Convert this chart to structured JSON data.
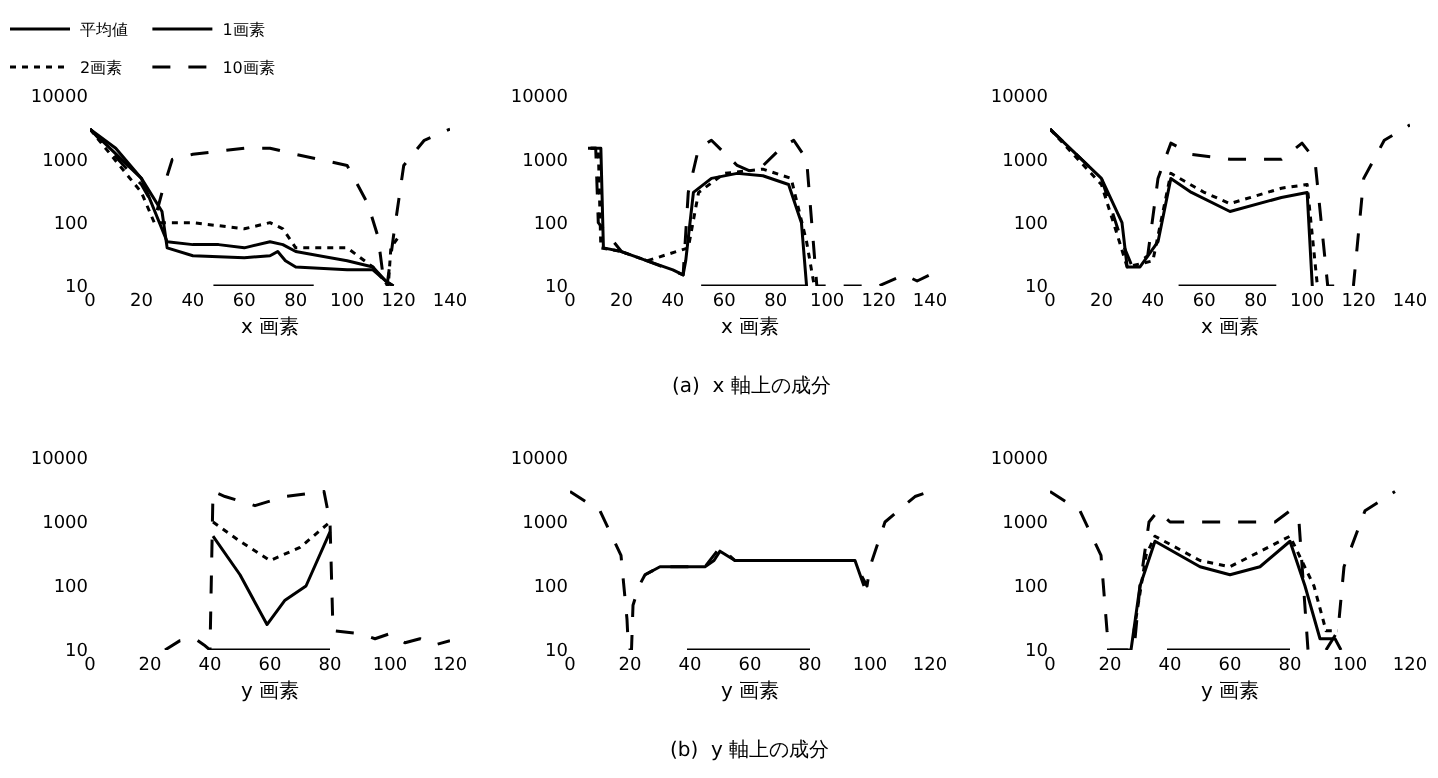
{
  "chart_data": [
    {
      "type": "line",
      "xlabel": "x 画素",
      "log": "y",
      "xlim": [
        0,
        140
      ],
      "xticks": [
        0,
        20,
        40,
        60,
        80,
        100,
        120,
        140
      ],
      "ylim": [
        10,
        10000
      ],
      "yticks": [
        10,
        100,
        1000,
        10000
      ],
      "legend": "top left",
      "grid": false,
      "series": [
        {
          "name": "平均値",
          "color": "#000000",
          "line_style": "solid",
          "x": [
            0,
            10,
            20,
            28,
            30,
            40,
            60,
            70,
            73,
            76,
            80,
            100,
            110,
            115,
            118
          ],
          "values": [
            3000,
            1500,
            500,
            150,
            40,
            30,
            28,
            30,
            35,
            25,
            20,
            18,
            18,
            12,
            10
          ]
        },
        {
          "name": "1画素",
          "color": "#000000",
          "line_style": "solid",
          "x": [
            0,
            20,
            30,
            40,
            50,
            60,
            70,
            75,
            80,
            100,
            110,
            115,
            118
          ],
          "values": [
            3000,
            500,
            50,
            45,
            45,
            40,
            50,
            45,
            35,
            25,
            20,
            12,
            10
          ]
        },
        {
          "name": "2画素",
          "color": "#000000",
          "line_style": "dotted",
          "x": [
            0,
            20,
            25,
            28,
            40,
            60,
            70,
            75,
            80,
            100,
            110,
            116,
            117,
            120
          ],
          "values": [
            3000,
            300,
            100,
            100,
            100,
            80,
            100,
            80,
            40,
            40,
            20,
            10,
            40,
            60
          ]
        },
        {
          "name": "10画素",
          "color": "#000000",
          "line_style": "dashed",
          "x": [
            0,
            20,
            26,
            28,
            32,
            40,
            60,
            70,
            80,
            100,
            108,
            112,
            114.5,
            115.5,
            118,
            122,
            130,
            140
          ],
          "values": [
            3000,
            400,
            150,
            300,
            1000,
            1200,
            1500,
            1500,
            1200,
            800,
            200,
            60,
            10,
            10,
            60,
            800,
            2000,
            3000
          ]
        },
        {
          "color": "#000000",
          "line_style": "solid",
          "x": [
            48,
            87
          ],
          "values": [
            10,
            10
          ]
        }
      ]
    },
    {
      "type": "line",
      "xlabel": "x 画素",
      "log": "y",
      "xlim": [
        0,
        140
      ],
      "xticks": [
        0,
        20,
        40,
        60,
        80,
        100,
        120,
        140
      ],
      "ylim": [
        10,
        10000
      ],
      "yticks": [
        10,
        100,
        1000,
        10000
      ],
      "legend": false,
      "grid": false,
      "annotations": [
        "(a)  x 軸上の成分"
      ],
      "series": [
        {
          "color": "#000000",
          "line_style": "solid",
          "x": [
            8,
            12,
            13,
            20,
            30,
            40,
            44,
            45,
            48,
            55,
            65,
            75,
            85,
            90,
            92
          ],
          "values": [
            1500,
            1500,
            40,
            35,
            25,
            18,
            15,
            25,
            300,
            500,
            600,
            550,
            400,
            100,
            10
          ]
        },
        {
          "color": "#000000",
          "line_style": "dotted",
          "x": [
            8,
            11,
            12,
            20,
            30,
            46,
            50,
            60,
            75,
            86,
            92,
            95
          ],
          "values": [
            1500,
            1500,
            40,
            35,
            25,
            40,
            300,
            600,
            700,
            500,
            50,
            10
          ]
        },
        {
          "color": "#000000",
          "line_style": "dashed",
          "x": [
            7,
            10,
            11,
            20,
            30,
            44,
            46,
            50,
            55,
            65,
            72,
            82,
            87,
            92,
            96,
            100,
            120,
            130,
            135,
            140
          ],
          "values": [
            1500,
            1500,
            100,
            35,
            25,
            15,
            300,
            1500,
            2000,
            800,
            600,
            1500,
            2000,
            1000,
            10,
            10,
            10,
            15,
            12,
            15
          ]
        },
        {
          "color": "#000000",
          "line_style": "solid",
          "x": [
            51,
            92
          ],
          "values": [
            10,
            10
          ]
        }
      ]
    },
    {
      "type": "line",
      "xlabel": "x 画素",
      "log": "y",
      "xlim": [
        0,
        140
      ],
      "xticks": [
        0,
        20,
        40,
        60,
        80,
        100,
        120,
        140
      ],
      "ylim": [
        10,
        10000
      ],
      "yticks": [
        10,
        100,
        1000,
        10000
      ],
      "legend": false,
      "grid": false,
      "series": [
        {
          "color": "#000000",
          "line_style": "solid",
          "x": [
            0,
            20,
            28,
            30,
            35,
            42,
            47,
            55,
            70,
            90,
            100,
            102
          ],
          "values": [
            3000,
            500,
            100,
            20,
            20,
            50,
            500,
            300,
            150,
            250,
            300,
            10
          ]
        },
        {
          "color": "#000000",
          "line_style": "dotted",
          "x": [
            0,
            20,
            27,
            30,
            40,
            47,
            60,
            70,
            90,
            100,
            104
          ],
          "values": [
            3000,
            400,
            50,
            20,
            25,
            600,
            300,
            200,
            350,
            400,
            10
          ]
        },
        {
          "color": "#000000",
          "line_style": "dashed",
          "x": [
            0,
            20,
            28,
            32,
            38,
            42,
            47,
            55,
            70,
            90,
            98,
            103,
            108,
            118,
            122,
            130,
            140
          ],
          "values": [
            3000,
            500,
            50,
            20,
            30,
            500,
            1800,
            1200,
            1000,
            1000,
            1800,
            1000,
            10,
            10,
            500,
            2000,
            3500
          ]
        },
        {
          "color": "#000000",
          "line_style": "solid",
          "x": [
            50,
            88
          ],
          "values": [
            10,
            10
          ]
        }
      ]
    },
    {
      "type": "line",
      "xlabel": "y 画素",
      "log": "y",
      "xlim": [
        0,
        120
      ],
      "xticks": [
        0,
        20,
        40,
        60,
        80,
        100,
        120
      ],
      "ylim": [
        10,
        10000
      ],
      "yticks": [
        10,
        100,
        1000,
        10000
      ],
      "legend": false,
      "grid": false,
      "series": [
        {
          "color": "#000000",
          "line_style": "solid",
          "x": [
            41,
            50,
            59,
            65,
            72,
            80
          ],
          "values": [
            600,
            150,
            25,
            60,
            100,
            700
          ]
        },
        {
          "color": "#000000",
          "line_style": "dotted",
          "x": [
            41,
            50,
            60,
            70,
            80
          ],
          "values": [
            1000,
            500,
            250,
            400,
            1000
          ]
        },
        {
          "color": "#000000",
          "line_style": "dashed",
          "x": [
            25,
            30,
            35,
            38,
            40,
            41,
            45,
            55,
            65,
            78,
            80,
            81,
            90,
            95,
            100,
            105,
            110,
            115,
            120
          ],
          "values": [
            10,
            14,
            15,
            12,
            10,
            3000,
            2500,
            1800,
            2500,
            3000,
            1000,
            20,
            18,
            15,
            18,
            13,
            15,
            12,
            14
          ]
        },
        {
          "color": "#000000",
          "line_style": "solid",
          "x": [
            40,
            80
          ],
          "values": [
            10,
            10
          ]
        }
      ]
    },
    {
      "type": "line",
      "xlabel": "y 画素",
      "log": "y",
      "xlim": [
        0,
        120
      ],
      "xticks": [
        0,
        20,
        40,
        60,
        80,
        100,
        120
      ],
      "ylim": [
        10,
        10000
      ],
      "yticks": [
        10,
        100,
        1000,
        10000
      ],
      "legend": false,
      "grid": false,
      "annotations": [
        "(b)  y 軸上の成分"
      ],
      "series": [
        {
          "color": "#000000",
          "line_style": "solid",
          "x": [
            25,
            30,
            45,
            48,
            50,
            55,
            95,
            98
          ],
          "values": [
            150,
            200,
            200,
            250,
            350,
            250,
            250,
            100
          ]
        },
        {
          "color": "#000000",
          "line_style": "dashed",
          "x": [
            0,
            10,
            17,
            19,
            19.5,
            20.5,
            21,
            23,
            25,
            30,
            45,
            50,
            55,
            95,
            97,
            99,
            100,
            105,
            115,
            120
          ],
          "values": [
            3000,
            1500,
            300,
            30,
            10,
            10,
            50,
            100,
            150,
            200,
            200,
            400,
            250,
            250,
            150,
            100,
            200,
            1000,
            2500,
            3000
          ]
        },
        {
          "color": "#000000",
          "line_style": "solid",
          "x": [
            39,
            80
          ],
          "values": [
            10,
            10
          ]
        }
      ]
    },
    {
      "type": "line",
      "xlabel": "y 画素",
      "log": "y",
      "xlim": [
        0,
        120
      ],
      "xticks": [
        0,
        20,
        40,
        60,
        80,
        100,
        120
      ],
      "ylim": [
        10,
        10000
      ],
      "yticks": [
        10,
        100,
        1000,
        10000
      ],
      "legend": false,
      "grid": false,
      "series": [
        {
          "color": "#000000",
          "line_style": "solid",
          "x": [
            19,
            27,
            30,
            35,
            50,
            60,
            70,
            80,
            85,
            90,
            95,
            97
          ],
          "values": [
            10,
            10,
            100,
            500,
            200,
            150,
            200,
            500,
            100,
            15,
            15,
            10
          ]
        },
        {
          "color": "#000000",
          "line_style": "dotted",
          "x": [
            28,
            32,
            35,
            50,
            60,
            80,
            88,
            92,
            96
          ],
          "values": [
            20,
            300,
            600,
            250,
            200,
            600,
            100,
            20,
            20
          ]
        },
        {
          "color": "#000000",
          "line_style": "dashed",
          "x": [
            0,
            10,
            17,
            19,
            20,
            28,
            30,
            33,
            36,
            40,
            75,
            80,
            83,
            86,
            92,
            96,
            98,
            105,
            115
          ],
          "values": [
            3000,
            1500,
            300,
            20,
            10,
            10,
            100,
            1000,
            1500,
            1000,
            1000,
            1500,
            1000,
            10,
            10,
            20,
            200,
            1500,
            3000
          ]
        },
        {
          "color": "#000000",
          "line_style": "solid",
          "x": [
            39,
            80
          ],
          "values": [
            10,
            10
          ]
        }
      ]
    }
  ]
}
